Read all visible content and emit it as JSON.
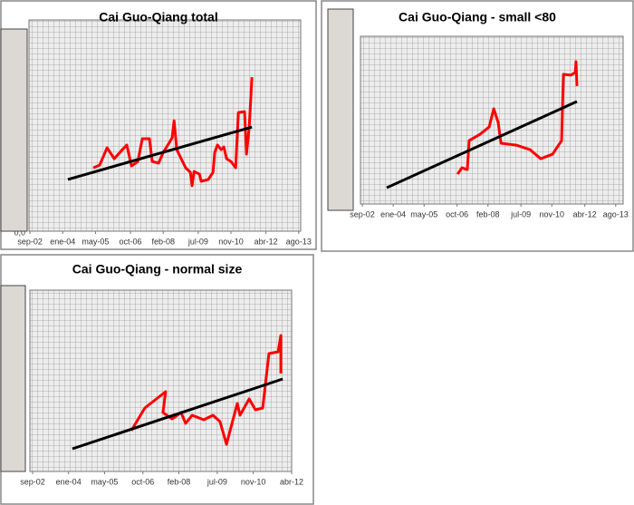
{
  "chart_data": [
    {
      "type": "line",
      "title": "Cai Guo-Qiang total",
      "xlim": [
        2002.63,
        2013.66
      ],
      "ylim": [
        0,
        100
      ],
      "xticks": [
        {
          "value": 2002.67,
          "label": "sep-02"
        },
        {
          "value": 2004.0,
          "label": "ene-04"
        },
        {
          "value": 2005.33,
          "label": "may-05"
        },
        {
          "value": 2006.75,
          "label": "oct-06"
        },
        {
          "value": 2008.08,
          "label": "feb-08"
        },
        {
          "value": 2009.5,
          "label": "jul-09"
        },
        {
          "value": 2010.83,
          "label": "nov-10"
        },
        {
          "value": 2012.25,
          "label": "abr-12"
        },
        {
          "value": 2013.58,
          "label": "ago-13"
        }
      ],
      "yticks": [
        {
          "value": 0,
          "label": "0,0"
        }
      ],
      "series": [
        {
          "color": "#ff0000",
          "x": [
            2005.24,
            2005.5,
            2005.8,
            2006.09,
            2006.42,
            2006.6,
            2006.79,
            2007.05,
            2007.23,
            2007.52,
            2007.63,
            2007.89,
            2008.08,
            2008.33,
            2008.44,
            2008.52,
            2008.63,
            2008.99,
            2009.18,
            2009.25,
            2009.33,
            2009.55,
            2009.62,
            2009.91,
            2010.1,
            2010.17,
            2010.28,
            2010.43,
            2010.54,
            2010.65,
            2010.83,
            2011.02,
            2011.13,
            2011.38,
            2011.46,
            2011.57,
            2011.68
          ],
          "values": [
            30.0,
            31.3,
            39.5,
            34.3,
            38.6,
            40.8,
            30.9,
            33.0,
            43.8,
            43.8,
            33.0,
            32.2,
            37.3,
            42.0,
            44.2,
            52.3,
            38.6,
            30.0,
            27.9,
            21.5,
            28.3,
            27.0,
            23.6,
            24.5,
            27.9,
            37.3,
            40.8,
            38.6,
            39.9,
            34.3,
            33.0,
            30.0,
            56.2,
            56.6,
            36.5,
            49.3,
            72.9
          ]
        },
        {
          "color": "#000000",
          "x": [
            2004.21,
            2011.68
          ],
          "values": [
            24.5,
            49.3
          ]
        }
      ]
    },
    {
      "type": "line",
      "title": "Cai Guo-Qiang - small <80",
      "xlim": [
        2002.59,
        2013.9
      ],
      "ylim": [
        0,
        100
      ],
      "xticks": [
        {
          "value": 2002.67,
          "label": "sep-02"
        },
        {
          "value": 2004.0,
          "label": "ene-04"
        },
        {
          "value": 2005.33,
          "label": "may-05"
        },
        {
          "value": 2006.75,
          "label": "oct-06"
        },
        {
          "value": 2008.08,
          "label": "feb-08"
        },
        {
          "value": 2009.5,
          "label": "jul-09"
        },
        {
          "value": 2010.83,
          "label": "nov-10"
        },
        {
          "value": 2012.25,
          "label": "abr-12"
        },
        {
          "value": 2013.58,
          "label": "ago-13"
        }
      ],
      "series": [
        {
          "color": "#ff0000",
          "x": [
            2006.77,
            2006.96,
            2007.19,
            2007.27,
            2007.74,
            2008.13,
            2008.33,
            2008.52,
            2008.64,
            2009.3,
            2009.89,
            2010.35,
            2010.86,
            2011.25,
            2011.33,
            2011.64,
            2011.84,
            2011.87,
            2011.91
          ],
          "values": [
            17.8,
            21.6,
            20.5,
            37.8,
            41.6,
            45.9,
            56.8,
            48.6,
            36.2,
            35.1,
            32.4,
            27.0,
            29.7,
            37.8,
            77.3,
            76.8,
            78.4,
            84.9,
            70.3
          ]
        },
        {
          "color": "#000000",
          "x": [
            2003.72,
            2011.91
          ],
          "values": [
            9.7,
            61.1
          ]
        }
      ]
    },
    {
      "type": "line",
      "title": "Cai Guo-Qiang - normal size",
      "xlim": [
        2002.57,
        2012.25
      ],
      "ylim": [
        0,
        100
      ],
      "xticks": [
        {
          "value": 2002.67,
          "label": "sep-02"
        },
        {
          "value": 2004.0,
          "label": "ene-04"
        },
        {
          "value": 2005.33,
          "label": "may-05"
        },
        {
          "value": 2006.75,
          "label": "oct-06"
        },
        {
          "value": 2008.08,
          "label": "feb-08"
        },
        {
          "value": 2009.5,
          "label": "jul-09"
        },
        {
          "value": 2010.83,
          "label": "nov-10"
        },
        {
          "value": 2012.25,
          "label": "abr-12"
        }
      ],
      "series": [
        {
          "color": "#ff0000",
          "x": [
            2006.32,
            2006.82,
            2007.59,
            2007.49,
            2007.83,
            2008.16,
            2008.33,
            2008.57,
            2009.0,
            2009.34,
            2009.6,
            2009.84,
            2010.24,
            2010.34,
            2010.68,
            2010.91,
            2011.18,
            2011.41,
            2011.75,
            2011.85,
            2011.85
          ],
          "values": [
            22.5,
            35.0,
            44.0,
            32.5,
            29.0,
            32.5,
            26.5,
            31.0,
            28.5,
            31.0,
            27.5,
            15.0,
            37.5,
            31.0,
            40.0,
            34.0,
            35.0,
            65.0,
            66.0,
            75.0,
            54.0
          ]
        },
        {
          "color": "#000000",
          "x": [
            2004.14,
            2011.92
          ],
          "values": [
            12.5,
            51.0
          ]
        }
      ]
    }
  ]
}
